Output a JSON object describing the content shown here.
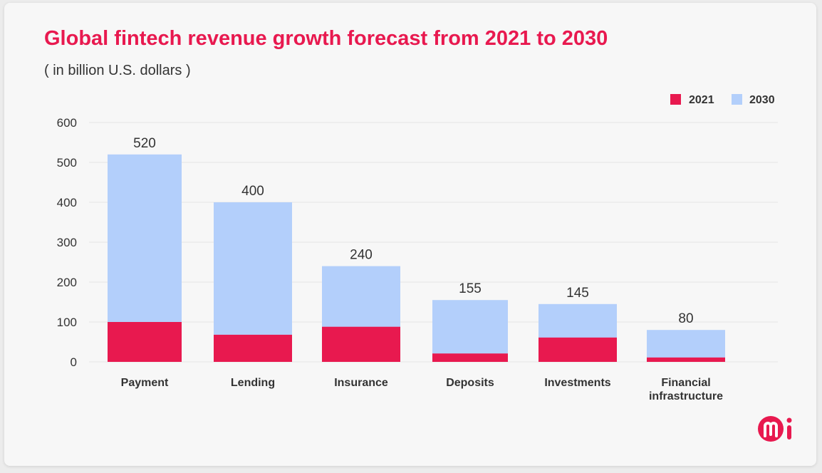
{
  "chart_data": {
    "type": "bar",
    "title": "Global fintech revenue growth forecast from 2021 to 2030",
    "subtitle": "( in billion U.S. dollars )",
    "categories": [
      "Payment",
      "Lending",
      "Insurance",
      "Deposits",
      "Investments",
      "Financial infrastructure"
    ],
    "category_lines": [
      [
        "Payment"
      ],
      [
        "Lending"
      ],
      [
        "Insurance"
      ],
      [
        "Deposits"
      ],
      [
        "Investments"
      ],
      [
        "Financial",
        "infrastructure"
      ]
    ],
    "series": [
      {
        "name": "2021",
        "color": "#e8194f",
        "values": [
          100,
          68,
          88,
          21,
          61,
          11
        ]
      },
      {
        "name": "2030",
        "color": "#b3cffb",
        "values": [
          520,
          400,
          240,
          155,
          145,
          80
        ]
      }
    ],
    "data_labels": [
      "520",
      "400",
      "240",
      "155",
      "145",
      "80"
    ],
    "yticks": [
      0,
      100,
      200,
      300,
      400,
      500,
      600
    ],
    "ylim": [
      0,
      600
    ],
    "grid": true,
    "legend": "top-right",
    "layout_note_overlap": "2021 bars drawn over 2030 bars"
  },
  "logo": {
    "text": "mi",
    "color": "#e8194f"
  }
}
